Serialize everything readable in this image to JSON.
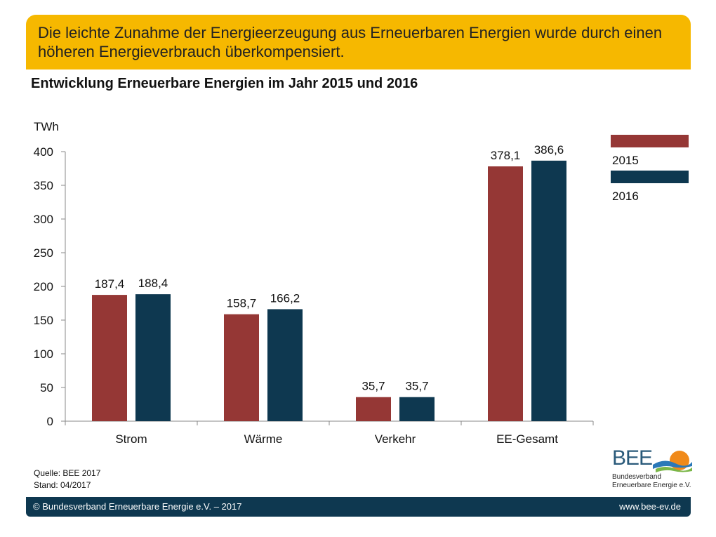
{
  "banner": {
    "text": "Die leichte Zunahme der Energieerzeugung aus Erneuerbaren Energien wurde durch einen höheren Energieverbrauch überkompensiert."
  },
  "chart_data": {
    "type": "bar",
    "title": "Entwicklung Erneuerbare Energien im Jahr 2015 und 2016",
    "ylabel": "TWh",
    "xlabel": "",
    "ylim": [
      0,
      400
    ],
    "yticks": [
      "0",
      "50",
      "100",
      "150",
      "200",
      "250",
      "300",
      "350",
      "400"
    ],
    "categories": [
      "Strom",
      "Wärme",
      "Verkehr",
      "EE-Gesamt"
    ],
    "series": [
      {
        "name": "2015",
        "color": "#953735",
        "values": [
          187.4,
          158.7,
          35.7,
          378.1
        ],
        "labels": [
          "187,4",
          "158,7",
          "35,7",
          "378,1"
        ]
      },
      {
        "name": "2016",
        "color": "#0e3850",
        "values": [
          188.4,
          166.2,
          35.7,
          386.6
        ],
        "labels": [
          "188,4",
          "166,2",
          "35,7",
          "386,6"
        ]
      }
    ],
    "legend_position": "top-right",
    "grid": false
  },
  "source": {
    "line1": "Quelle: BEE 2017",
    "line2": "Stand: 04/2017"
  },
  "logo": {
    "name": "BEE",
    "line1": "Bundesverband",
    "line2": "Erneuerbare Energie e.V."
  },
  "footer": {
    "left": "© Bundesverband Erneuerbare Energie e.V. – 2017",
    "right": "www.bee-ev.de"
  }
}
